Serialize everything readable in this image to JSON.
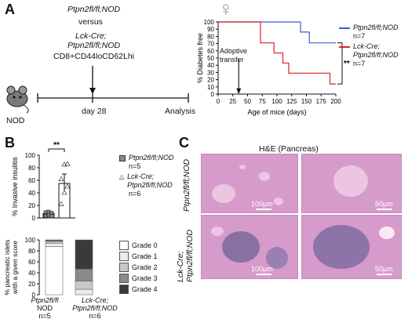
{
  "panel_a": {
    "letter": "A",
    "schema": {
      "line1": "Ptpn2fl/fl;NOD",
      "versus": "versus",
      "line3a": "Lck-Cre;",
      "line3b": "Ptpn2fl/fl;NOD",
      "population": "CD8+CD44loCD62Lhi",
      "mouse_label": "NOD",
      "day_label": "day 28",
      "analysis_label": "Analysis"
    },
    "female_symbol": "♀",
    "annotation_adoptive": [
      "Adoptive",
      "transfer"
    ],
    "significance": "**"
  },
  "panel_b": {
    "letter": "B",
    "significance": "**",
    "invasive_ylabel": "% Invasive insulitis",
    "score_ylabel": [
      "% pancreatic islets",
      "with a given score"
    ],
    "legend_top": [
      {
        "name": "Ptpn2fl/fl;NOD",
        "n": "n=5"
      },
      {
        "name": "Lck-Cre; Ptpn2fl/fl;NOD",
        "n": "n=6"
      }
    ],
    "grades_legend": [
      "Grade 0",
      "Grade 1",
      "Grade 2",
      "Grade 3",
      "Grade 4"
    ],
    "xlabels": [
      {
        "line1": "Ptpn2fl/fl",
        "line2": "NOD",
        "n": "n=5"
      },
      {
        "line1": "Lck-Cre;",
        "line2": "Ptpn2fl/fl;NOD",
        "n": "n=6"
      }
    ]
  },
  "panel_c": {
    "letter": "C",
    "title": "H&E (Pancreas)",
    "row1_label": "Ptpn2fl/fl;NOD",
    "row2_label": [
      "Lck-Cre;",
      "Ptpn2fl/fl;NOD"
    ],
    "scale_100": "100µm",
    "scale_50": "50µm"
  },
  "chart_data": [
    {
      "type": "line",
      "subtype": "step (survival)",
      "xlabel": "Age of mice (days)",
      "ylabel": "% Diabetes free",
      "xlim": [
        0,
        200
      ],
      "ylim": [
        0,
        100
      ],
      "xticks": [
        0,
        25,
        50,
        75,
        100,
        125,
        150,
        175,
        200
      ],
      "yticks": [
        0,
        10,
        20,
        30,
        40,
        50,
        60,
        70,
        80,
        90,
        100
      ],
      "series": [
        {
          "name": "Ptpn2fl/fl;NOD",
          "n": "n=7",
          "color": "#3b5bd6",
          "x": [
            0,
            140,
            140,
            155,
            155,
            200
          ],
          "y": [
            100,
            100,
            86,
            86,
            71,
            71
          ]
        },
        {
          "name": "Lck-Cre; Ptpn2fl/fl;NOD",
          "n": "n=7",
          "color": "#e02020",
          "x": [
            0,
            72,
            72,
            95,
            95,
            110,
            110,
            120,
            120,
            145,
            145,
            190,
            190,
            200
          ],
          "y": [
            100,
            100,
            71,
            71,
            57,
            57,
            43,
            43,
            29,
            29,
            29,
            29,
            14,
            14
          ]
        }
      ],
      "legend": "right"
    },
    {
      "type": "bar",
      "ylabel": "% Invasive insulitis",
      "ylim": [
        0,
        100
      ],
      "yticks": [
        0,
        20,
        40,
        60,
        80,
        100
      ],
      "categories": [
        "Ptpn2fl/fl;NOD",
        "Lck-Cre; Ptpn2fl/fl;NOD"
      ],
      "values": [
        7,
        55
      ],
      "errors": [
        3,
        15
      ],
      "points": [
        [
          3,
          5,
          8,
          9,
          10
        ],
        [
          22,
          40,
          50,
          62,
          85,
          86
        ]
      ],
      "colors": [
        "#888888",
        "#ffffff"
      ]
    },
    {
      "type": "bar",
      "subtype": "stacked",
      "ylabel": "% pancreatic islets with a given score",
      "ylim": [
        0,
        100
      ],
      "yticks": [
        0,
        20,
        40,
        60,
        80,
        100
      ],
      "categories": [
        "Ptpn2fl/fl NOD",
        "Lck-Cre; Ptpn2fl/fl;NOD"
      ],
      "series": [
        {
          "name": "Grade 0",
          "color": "#ffffff",
          "values": [
            88,
            0
          ]
        },
        {
          "name": "Grade 1",
          "color": "#ececec",
          "values": [
            6,
            10
          ]
        },
        {
          "name": "Grade 2",
          "color": "#c8c8c8",
          "values": [
            3,
            15
          ]
        },
        {
          "name": "Grade 3",
          "color": "#8a8a8a",
          "values": [
            2,
            22
          ]
        },
        {
          "name": "Grade 4",
          "color": "#3a3a3a",
          "values": [
            1,
            53
          ]
        }
      ]
    }
  ]
}
